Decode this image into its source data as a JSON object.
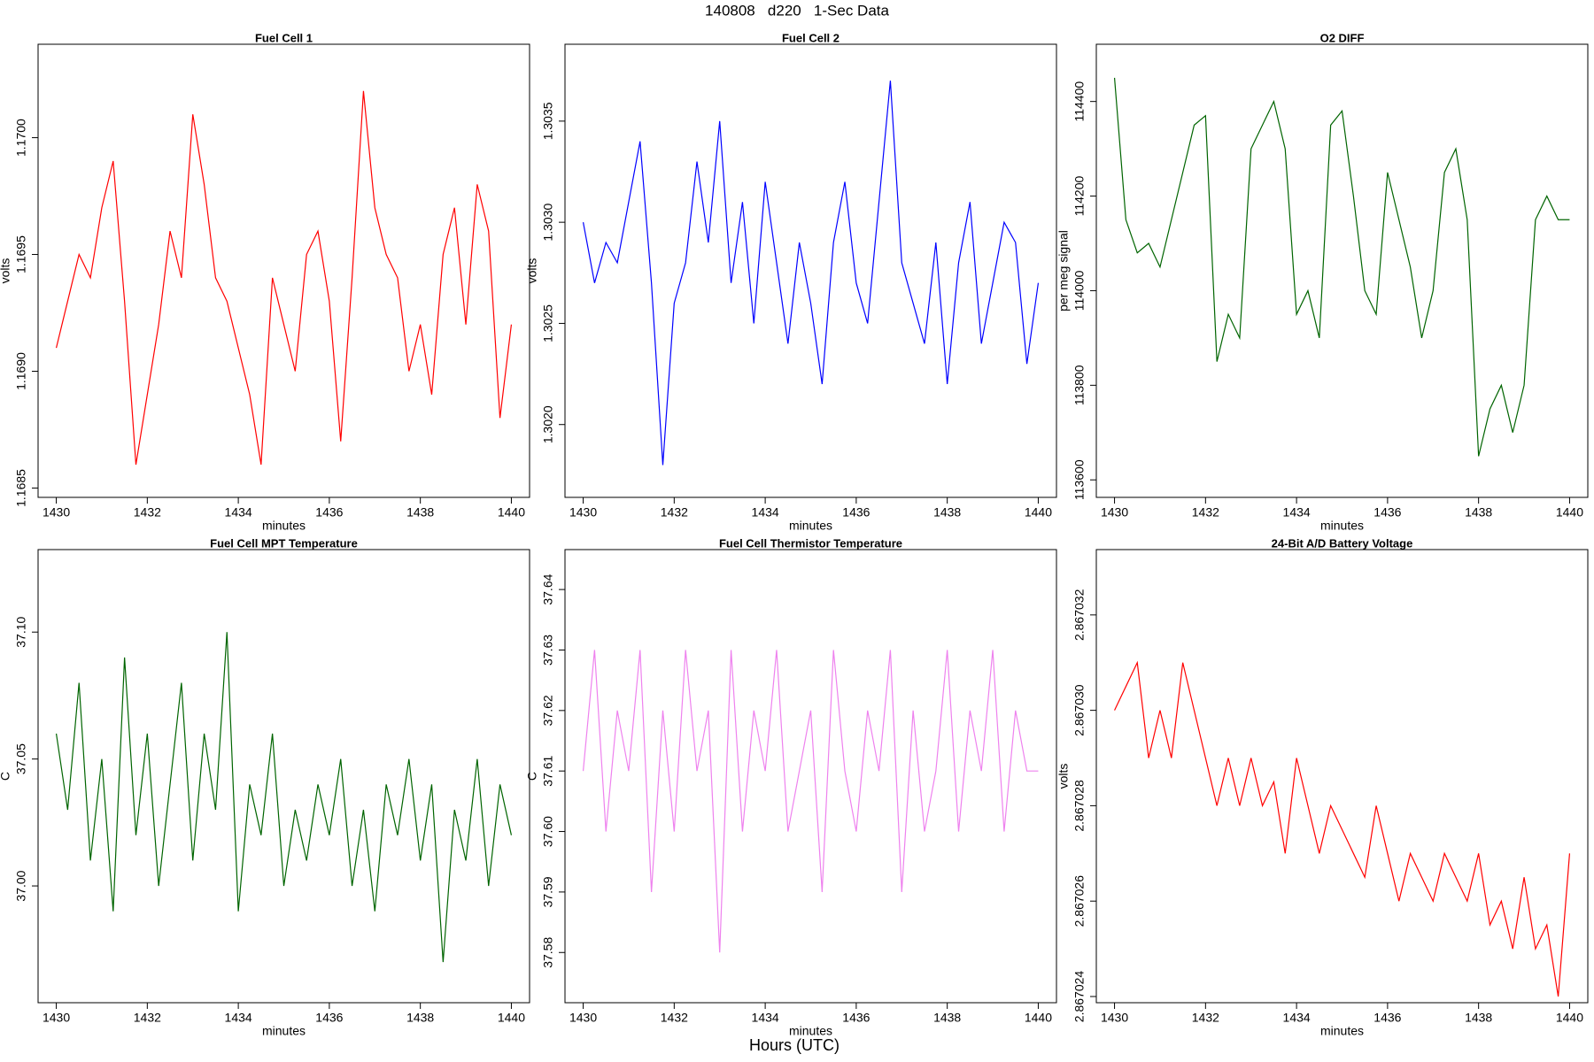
{
  "title": "140808   d220   1-Sec Data",
  "footer_label": "Hours (UTC)",
  "chart_data": [
    {
      "type": "line",
      "title": "Fuel Cell 1",
      "xlabel": "minutes",
      "ylabel": "volts",
      "color": "#ff0000",
      "xlim": [
        1429.6,
        1440.4
      ],
      "xticks": [
        1430,
        1432,
        1434,
        1436,
        1438,
        1440
      ],
      "ylim": [
        1.16846,
        1.1704
      ],
      "yticks": [
        1.1685,
        {
          "value": 1.169,
          "label": "1.1690"
        },
        1.1695,
        {
          "value": 1.17,
          "label": "1.1700"
        }
      ],
      "x": [
        1430,
        1430.25,
        1430.5,
        1430.75,
        1431,
        1431.25,
        1431.5,
        1431.75,
        1432,
        1432.25,
        1432.5,
        1432.75,
        1433,
        1433.25,
        1433.5,
        1433.75,
        1434,
        1434.25,
        1434.5,
        1434.75,
        1435,
        1435.25,
        1435.5,
        1435.75,
        1436,
        1436.25,
        1436.5,
        1436.75,
        1437,
        1437.25,
        1437.5,
        1437.75,
        1438,
        1438.25,
        1438.5,
        1438.75,
        1439,
        1439.25,
        1439.5,
        1439.75,
        1440
      ],
      "values": [
        1.1691,
        1.1693,
        1.1695,
        1.1694,
        1.1697,
        1.1699,
        1.1693,
        1.1686,
        1.1689,
        1.1692,
        1.1696,
        1.1694,
        1.1701,
        1.1698,
        1.1694,
        1.1693,
        1.1691,
        1.1689,
        1.1686,
        1.1694,
        1.1692,
        1.169,
        1.1695,
        1.1696,
        1.1693,
        1.1687,
        1.1694,
        1.1702,
        1.1697,
        1.1695,
        1.1694,
        1.169,
        1.1692,
        1.1689,
        1.1695,
        1.1697,
        1.1692,
        1.1698,
        1.1696,
        1.1688,
        1.1692
      ]
    },
    {
      "type": "line",
      "title": "Fuel Cell 2",
      "xlabel": "minutes",
      "ylabel": "volts",
      "color": "#0000ff",
      "xlim": [
        1429.6,
        1440.4
      ],
      "xticks": [
        1430,
        1432,
        1434,
        1436,
        1438,
        1440
      ],
      "ylim": [
        1.30164,
        1.30388
      ],
      "yticks": [
        {
          "value": 1.302,
          "label": "1.3020"
        },
        1.3025,
        {
          "value": 1.303,
          "label": "1.3030"
        },
        1.3035
      ],
      "x": [
        1430,
        1430.25,
        1430.5,
        1430.75,
        1431,
        1431.25,
        1431.5,
        1431.75,
        1432,
        1432.25,
        1432.5,
        1432.75,
        1433,
        1433.25,
        1433.5,
        1433.75,
        1434,
        1434.25,
        1434.5,
        1434.75,
        1435,
        1435.25,
        1435.5,
        1435.75,
        1436,
        1436.25,
        1436.5,
        1436.75,
        1437,
        1437.25,
        1437.5,
        1437.75,
        1438,
        1438.25,
        1438.5,
        1438.75,
        1439,
        1439.25,
        1439.5,
        1439.75,
        1440
      ],
      "values": [
        1.303,
        1.3027,
        1.3029,
        1.3028,
        1.3031,
        1.3034,
        1.3027,
        1.3018,
        1.3026,
        1.3028,
        1.3033,
        1.3029,
        1.3035,
        1.3027,
        1.3031,
        1.3025,
        1.3032,
        1.3028,
        1.3024,
        1.3029,
        1.3026,
        1.3022,
        1.3029,
        1.3032,
        1.3027,
        1.3025,
        1.3031,
        1.3037,
        1.3028,
        1.3026,
        1.3024,
        1.3029,
        1.3022,
        1.3028,
        1.3031,
        1.3024,
        1.3027,
        1.303,
        1.3029,
        1.3023,
        1.3027
      ]
    },
    {
      "type": "line",
      "title": "O2 DIFF",
      "xlabel": "minutes",
      "ylabel": "per meg signal",
      "color": "#006400",
      "xlim": [
        1429.6,
        1440.4
      ],
      "xticks": [
        1430,
        1432,
        1434,
        1436,
        1438,
        1440
      ],
      "ylim": [
        113563,
        114521
      ],
      "yticks": [
        113600,
        113800,
        114000,
        114200,
        114400
      ],
      "x": [
        1430,
        1430.25,
        1430.5,
        1430.75,
        1431,
        1431.25,
        1431.5,
        1431.75,
        1432,
        1432.25,
        1432.5,
        1432.75,
        1433,
        1433.25,
        1433.5,
        1433.75,
        1434,
        1434.25,
        1434.5,
        1434.75,
        1435,
        1435.25,
        1435.5,
        1435.75,
        1436,
        1436.25,
        1436.5,
        1436.75,
        1437,
        1437.25,
        1437.5,
        1437.75,
        1438,
        1438.25,
        1438.5,
        1438.75,
        1439,
        1439.25,
        1439.5,
        1439.75,
        1440
      ],
      "values": [
        114450,
        114150,
        114080,
        114100,
        114050,
        114150,
        114250,
        114350,
        114370,
        113850,
        113950,
        113900,
        114300,
        114350,
        114400,
        114300,
        113950,
        114000,
        113900,
        114350,
        114380,
        114200,
        114000,
        113950,
        114250,
        114150,
        114050,
        113900,
        114000,
        114250,
        114300,
        114150,
        113650,
        113750,
        113800,
        113700,
        113800,
        114150,
        114200,
        114150,
        114150
      ]
    },
    {
      "type": "line",
      "title": "Fuel Cell MPT Temperature",
      "xlabel": "minutes",
      "ylabel": "C",
      "color": "#006400",
      "xlim": [
        1429.6,
        1440.4
      ],
      "xticks": [
        1430,
        1432,
        1434,
        1436,
        1438,
        1440
      ],
      "ylim": [
        36.954,
        37.1325
      ],
      "yticks": [
        {
          "value": 37,
          "label": "37.00"
        },
        37.05,
        {
          "value": 37.1,
          "label": "37.10"
        }
      ],
      "x": [
        1430,
        1430.25,
        1430.5,
        1430.75,
        1431,
        1431.25,
        1431.5,
        1431.75,
        1432,
        1432.25,
        1432.5,
        1432.75,
        1433,
        1433.25,
        1433.5,
        1433.75,
        1434,
        1434.25,
        1434.5,
        1434.75,
        1435,
        1435.25,
        1435.5,
        1435.75,
        1436,
        1436.25,
        1436.5,
        1436.75,
        1437,
        1437.25,
        1437.5,
        1437.75,
        1438,
        1438.25,
        1438.5,
        1438.75,
        1439,
        1439.25,
        1439.5,
        1439.75,
        1440
      ],
      "values": [
        37.06,
        37.03,
        37.08,
        37.01,
        37.05,
        36.99,
        37.09,
        37.02,
        37.06,
        37,
        37.04,
        37.08,
        37.01,
        37.06,
        37.03,
        37.1,
        36.99,
        37.04,
        37.02,
        37.06,
        37,
        37.03,
        37.01,
        37.04,
        37.02,
        37.05,
        37,
        37.03,
        36.99,
        37.04,
        37.02,
        37.05,
        37.01,
        37.04,
        36.97,
        37.03,
        37.01,
        37.05,
        37,
        37.04,
        37.02
      ]
    },
    {
      "type": "line",
      "title": "Fuel Cell Thermistor Temperature",
      "xlabel": "minutes",
      "ylabel": "C",
      "color": "#ee82ee",
      "xlim": [
        1429.6,
        1440.4
      ],
      "xticks": [
        1430,
        1432,
        1434,
        1436,
        1438,
        1440
      ],
      "ylim": [
        37.5717,
        37.6466
      ],
      "yticks": [
        37.58,
        37.59,
        {
          "value": 37.6,
          "label": "37.60"
        },
        37.61,
        37.62,
        37.63,
        37.64
      ],
      "x": [
        1430,
        1430.25,
        1430.5,
        1430.75,
        1431,
        1431.25,
        1431.5,
        1431.75,
        1432,
        1432.25,
        1432.5,
        1432.75,
        1433,
        1433.25,
        1433.5,
        1433.75,
        1434,
        1434.25,
        1434.5,
        1434.75,
        1435,
        1435.25,
        1435.5,
        1435.75,
        1436,
        1436.25,
        1436.5,
        1436.75,
        1437,
        1437.25,
        1437.5,
        1437.75,
        1438,
        1438.25,
        1438.5,
        1438.75,
        1439,
        1439.25,
        1439.5,
        1439.75,
        1440
      ],
      "values": [
        37.61,
        37.63,
        37.6,
        37.62,
        37.61,
        37.63,
        37.59,
        37.62,
        37.6,
        37.63,
        37.61,
        37.62,
        37.58,
        37.63,
        37.6,
        37.62,
        37.61,
        37.63,
        37.6,
        37.61,
        37.62,
        37.59,
        37.63,
        37.61,
        37.6,
        37.62,
        37.61,
        37.63,
        37.59,
        37.62,
        37.6,
        37.61,
        37.63,
        37.6,
        37.62,
        37.61,
        37.63,
        37.6,
        37.62,
        37.61,
        37.61
      ]
    },
    {
      "type": "line",
      "title": "24-Bit A/D Battery Voltage",
      "xlabel": "minutes",
      "ylabel": "volts",
      "color": "#ff0000",
      "xlim": [
        1429.6,
        1440.4
      ],
      "xticks": [
        1430,
        1432,
        1434,
        1436,
        1438,
        1440
      ],
      "ylim": [
        2.86702387,
        2.86703337
      ],
      "yticks": [
        2.867024,
        2.867026,
        2.867028,
        {
          "value": 2.86703,
          "label": "2.867030"
        },
        2.867032
      ],
      "x": [
        1430,
        1430.25,
        1430.5,
        1430.75,
        1431,
        1431.25,
        1431.5,
        1431.75,
        1432,
        1432.25,
        1432.5,
        1432.75,
        1433,
        1433.25,
        1433.5,
        1433.75,
        1434,
        1434.25,
        1434.5,
        1434.75,
        1435,
        1435.25,
        1435.5,
        1435.75,
        1436,
        1436.25,
        1436.5,
        1436.75,
        1437,
        1437.25,
        1437.5,
        1437.75,
        1438,
        1438.25,
        1438.5,
        1438.75,
        1439,
        1439.25,
        1439.5,
        1439.75,
        1440
      ],
      "values": [
        2.86703,
        2.8670305,
        2.867031,
        2.867029,
        2.86703,
        2.867029,
        2.867031,
        2.86703,
        2.867029,
        2.867028,
        2.867029,
        2.867028,
        2.867029,
        2.867028,
        2.8670285,
        2.867027,
        2.867029,
        2.867028,
        2.867027,
        2.867028,
        2.8670275,
        2.867027,
        2.8670265,
        2.867028,
        2.867027,
        2.867026,
        2.867027,
        2.8670265,
        2.867026,
        2.867027,
        2.8670265,
        2.867026,
        2.867027,
        2.8670255,
        2.867026,
        2.867025,
        2.8670265,
        2.867025,
        2.8670255,
        2.867024,
        2.867027
      ]
    }
  ]
}
